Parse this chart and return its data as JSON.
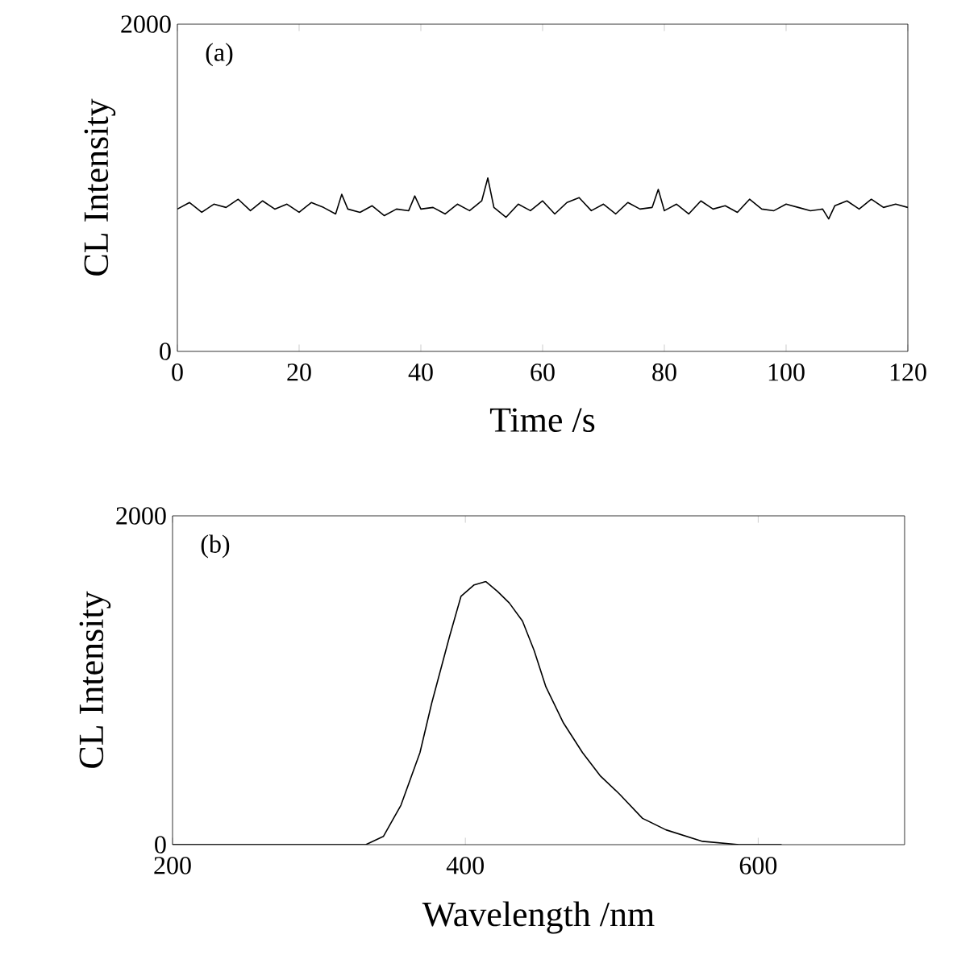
{
  "chart_data": [
    {
      "type": "line",
      "xlabel": "Time /s",
      "ylabel": "CL Intensity",
      "annotations": [
        "(a)"
      ],
      "xlim": [
        0,
        120
      ],
      "ylim": [
        0,
        2000
      ],
      "xticks": [
        0,
        20,
        40,
        60,
        80,
        100,
        120
      ],
      "yticks": [
        0,
        2000
      ],
      "marker": "none",
      "line_style": "solid",
      "series": [
        {
          "color": "#000000",
          "x": [
            0,
            2,
            4,
            6,
            8,
            10,
            12,
            14,
            16,
            18,
            20,
            22,
            24,
            26,
            27,
            28,
            30,
            32,
            34,
            36,
            38,
            39,
            40,
            42,
            44,
            46,
            48,
            50,
            51,
            52,
            54,
            56,
            58,
            60,
            62,
            64,
            66,
            68,
            70,
            72,
            74,
            76,
            78,
            79,
            80,
            82,
            84,
            86,
            88,
            90,
            92,
            94,
            96,
            98,
            100,
            102,
            104,
            106,
            107,
            108,
            110,
            112,
            114,
            116,
            118,
            120
          ],
          "values": [
            870,
            910,
            850,
            900,
            880,
            930,
            860,
            920,
            870,
            900,
            850,
            910,
            880,
            840,
            960,
            870,
            850,
            890,
            830,
            870,
            860,
            950,
            870,
            880,
            840,
            900,
            860,
            920,
            1060,
            880,
            820,
            900,
            860,
            920,
            840,
            910,
            940,
            860,
            900,
            840,
            910,
            870,
            880,
            990,
            860,
            900,
            840,
            920,
            870,
            890,
            850,
            930,
            870,
            860,
            900,
            880,
            860,
            870,
            810,
            890,
            920,
            870,
            930,
            880,
            900,
            880
          ]
        }
      ]
    },
    {
      "type": "line",
      "xlabel": "Wavelength /nm",
      "ylabel": "CL Intensity",
      "annotations": [
        "(b)"
      ],
      "xlim": [
        200,
        700
      ],
      "ylim": [
        0,
        2000
      ],
      "xticks": [
        200,
        400,
        600
      ],
      "yticks": [
        0,
        2000
      ],
      "marker": "none",
      "line_style": "solid",
      "series": [
        {
          "color": "#000000",
          "x": [
            200,
            250,
            300,
            332,
            344,
            356,
            369,
            377,
            389,
            397,
            406,
            414,
            422,
            430,
            439,
            447,
            455,
            467,
            480,
            492,
            505,
            521,
            537,
            562,
            587,
            616
          ],
          "values": [
            0,
            0,
            0,
            0,
            50,
            240,
            560,
            860,
            1260,
            1510,
            1580,
            1600,
            1540,
            1470,
            1360,
            1180,
            960,
            740,
            560,
            420,
            310,
            160,
            90,
            20,
            0,
            0
          ]
        }
      ]
    }
  ]
}
